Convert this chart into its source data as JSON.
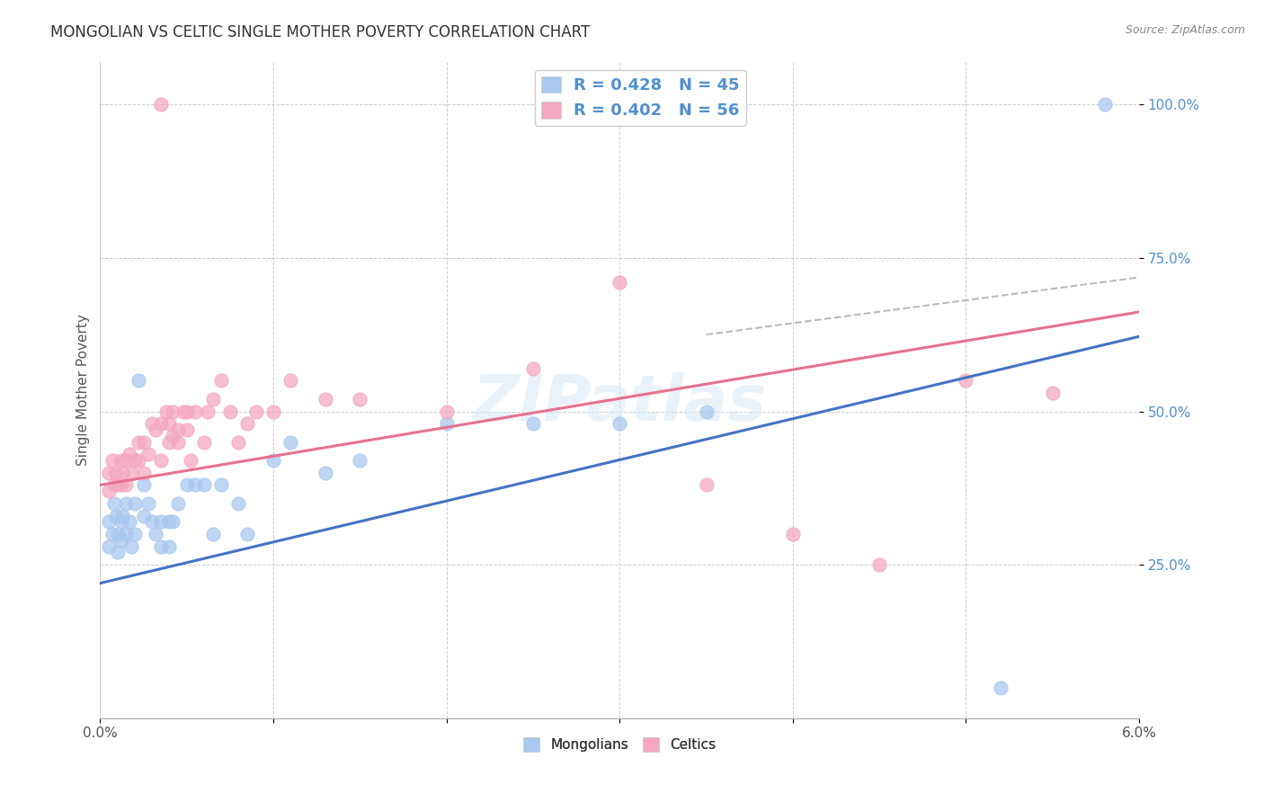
{
  "title": "MONGOLIAN VS CELTIC SINGLE MOTHER POVERTY CORRELATION CHART",
  "source": "Source: ZipAtlas.com",
  "ylabel": "Single Mother Poverty",
  "ytick_vals": [
    25,
    50,
    75,
    100
  ],
  "ytick_labels": [
    "25.0%",
    "50.0%",
    "75.0%",
    "100.0%"
  ],
  "legend_mongolian": "R = 0.428   N = 45",
  "legend_celtic": "R = 0.402   N = 56",
  "legend_bottom_mongolian": "Mongolians",
  "legend_bottom_celtic": "Celtics",
  "mongolian_color": "#A8C8F0",
  "celtic_color": "#F4A8C0",
  "mongolian_line_color": "#4472C4",
  "celtic_line_color": "#E87090",
  "background_color": "#FFFFFF",
  "grid_color": "#CCCCCC",
  "x_min": 0.0,
  "x_max": 6.0,
  "y_min": 0.0,
  "y_max": 107.0,
  "mongolian_intercept": 22.0,
  "mongolian_slope": 6.7,
  "celtic_intercept": 38.0,
  "celtic_slope": 4.7,
  "mongolian_scatter_x": [
    0.05,
    0.05,
    0.07,
    0.08,
    0.09,
    0.1,
    0.1,
    0.12,
    0.12,
    0.13,
    0.15,
    0.15,
    0.17,
    0.18,
    0.2,
    0.2,
    0.22,
    0.25,
    0.25,
    0.28,
    0.3,
    0.32,
    0.35,
    0.35,
    0.4,
    0.4,
    0.42,
    0.45,
    0.5,
    0.55,
    0.6,
    0.65,
    0.7,
    0.8,
    0.85,
    1.0,
    1.1,
    1.3,
    1.5,
    2.0,
    2.5,
    3.0,
    3.5,
    5.2,
    5.8
  ],
  "mongolian_scatter_y": [
    32,
    28,
    30,
    35,
    33,
    30,
    27,
    32,
    29,
    33,
    35,
    30,
    32,
    28,
    35,
    30,
    55,
    38,
    33,
    35,
    32,
    30,
    28,
    32,
    28,
    32,
    32,
    35,
    38,
    38,
    38,
    30,
    38,
    35,
    30,
    42,
    45,
    40,
    42,
    48,
    48,
    48,
    50,
    5,
    100
  ],
  "celtic_scatter_x": [
    0.05,
    0.05,
    0.07,
    0.08,
    0.09,
    0.1,
    0.12,
    0.12,
    0.13,
    0.15,
    0.15,
    0.17,
    0.18,
    0.2,
    0.22,
    0.22,
    0.25,
    0.25,
    0.28,
    0.3,
    0.32,
    0.35,
    0.35,
    0.38,
    0.4,
    0.4,
    0.42,
    0.42,
    0.45,
    0.45,
    0.48,
    0.5,
    0.5,
    0.52,
    0.55,
    0.6,
    0.62,
    0.65,
    0.7,
    0.75,
    0.8,
    0.85,
    0.9,
    1.0,
    1.1,
    1.3,
    1.5,
    2.0,
    2.5,
    3.0,
    3.5,
    4.0,
    4.5,
    0.35,
    5.0,
    5.5
  ],
  "celtic_scatter_y": [
    37,
    40,
    42,
    38,
    40,
    38,
    42,
    38,
    40,
    38,
    42,
    43,
    40,
    42,
    45,
    42,
    40,
    45,
    43,
    48,
    47,
    48,
    42,
    50,
    45,
    48,
    46,
    50,
    47,
    45,
    50,
    50,
    47,
    42,
    50,
    45,
    50,
    52,
    55,
    50,
    45,
    48,
    50,
    50,
    55,
    52,
    52,
    50,
    57,
    71,
    38,
    30,
    25,
    100,
    55,
    53
  ]
}
